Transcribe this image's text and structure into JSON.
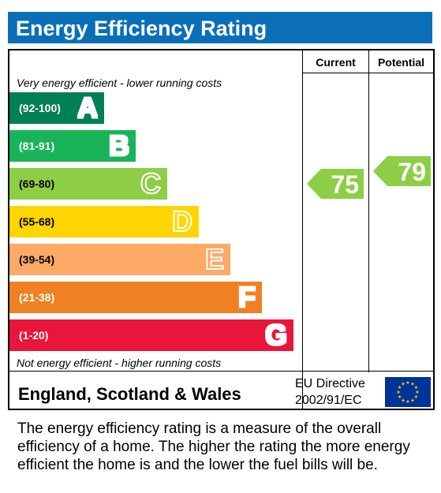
{
  "title": "Energy Efficiency Rating",
  "columns": {
    "current": "Current",
    "potential": "Potential"
  },
  "top_note": "Very energy efficient - lower running costs",
  "bottom_note": "Not energy efficient - higher running costs",
  "footer": {
    "region": "England, Scotland & Wales",
    "directive_line1": "EU Directive",
    "directive_line2": "2002/91/EC"
  },
  "description": "The energy efficiency rating is a measure of the overall efficiency of a home. The higher the rating the more energy efficient the home is and the lower the fuel bills will be.",
  "colors": {
    "title_bar": "#0a6fb7",
    "A": "#008054",
    "B": "#19b459",
    "C": "#8dce46",
    "D": "#ffd500",
    "E": "#fcaa65",
    "F": "#ef8023",
    "G": "#e9153b",
    "eu_flag": "#003399",
    "eu_stars": "#ffdd00"
  },
  "chart_data": {
    "type": "bar",
    "title": "Energy Efficiency Rating",
    "bands": [
      {
        "range": "(92-100)",
        "letter": "A",
        "min": 92,
        "max": 100
      },
      {
        "range": "(81-91)",
        "letter": "B",
        "min": 81,
        "max": 91
      },
      {
        "range": "(69-80)",
        "letter": "C",
        "min": 69,
        "max": 80
      },
      {
        "range": "(55-68)",
        "letter": "D",
        "min": 55,
        "max": 68
      },
      {
        "range": "(39-54)",
        "letter": "E",
        "min": 39,
        "max": 54
      },
      {
        "range": "(21-38)",
        "letter": "F",
        "min": 21,
        "max": 38
      },
      {
        "range": "(1-20)",
        "letter": "G",
        "min": 1,
        "max": 20
      }
    ],
    "current": {
      "value": 75,
      "band": "C"
    },
    "potential": {
      "value": 79,
      "band": "C"
    }
  }
}
